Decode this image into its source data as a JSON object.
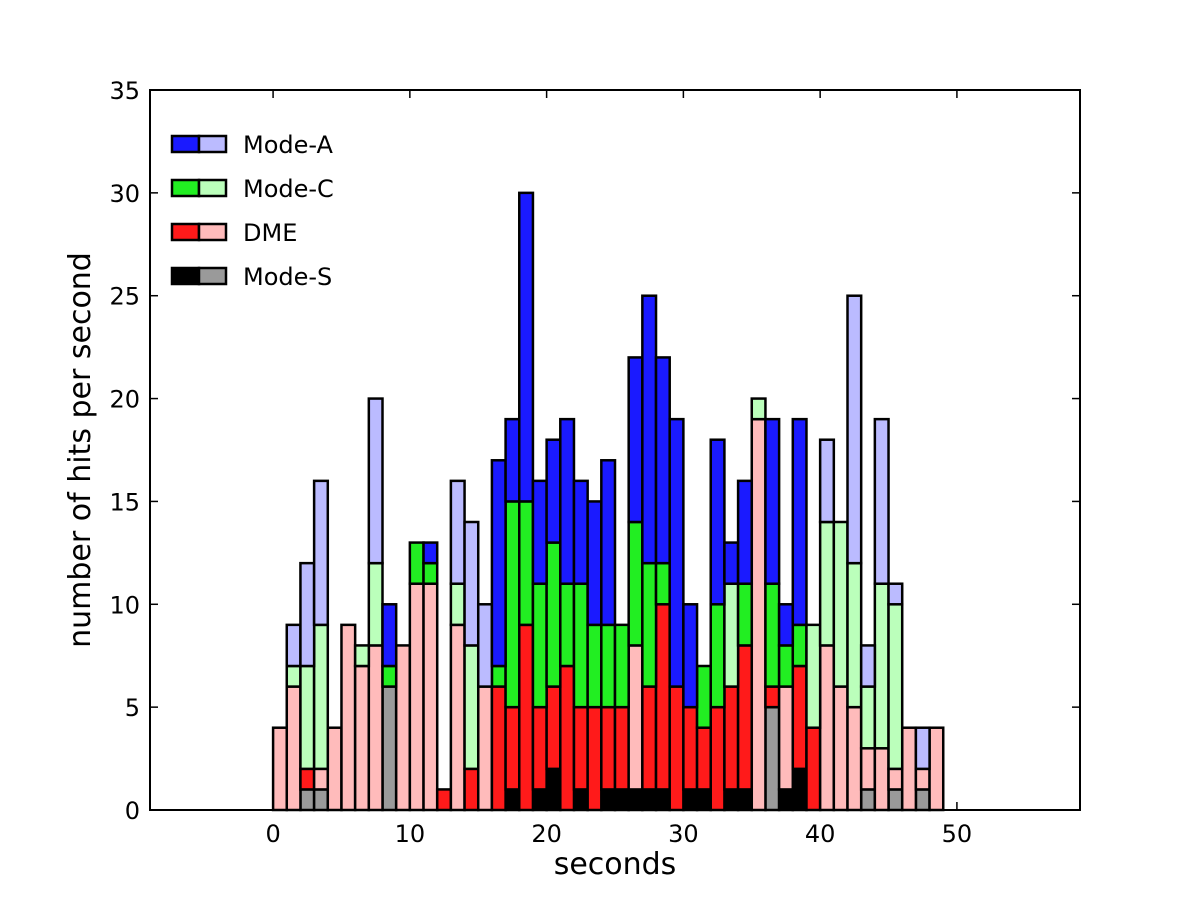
{
  "chart_data": {
    "type": "bar",
    "stacked": true,
    "xlabel": "seconds",
    "ylabel": "number of hits per second",
    "xlim": [
      -9,
      59
    ],
    "ylim": [
      0,
      35
    ],
    "xticks": [
      0,
      10,
      20,
      30,
      40,
      50
    ],
    "yticks": [
      0,
      5,
      10,
      15,
      20,
      25,
      30,
      35
    ],
    "x": [
      0,
      1,
      2,
      3,
      4,
      5,
      6,
      7,
      8,
      9,
      10,
      11,
      12,
      13,
      14,
      15,
      16,
      17,
      18,
      19,
      20,
      21,
      22,
      23,
      24,
      25,
      26,
      27,
      28,
      29,
      30,
      31,
      32,
      33,
      34,
      35,
      36,
      37,
      38,
      39,
      40,
      41,
      42,
      43,
      44,
      45,
      46,
      47,
      48,
      49
    ],
    "legend_position": "upper-left",
    "series": [
      {
        "name": "Mode-S",
        "colors": [
          "#000000",
          "#9a9a9a"
        ],
        "values": [
          0,
          0,
          1,
          1,
          0,
          0,
          0,
          0,
          6,
          0,
          0,
          0,
          0,
          0,
          0,
          0,
          0,
          1,
          0,
          1,
          2,
          0,
          1,
          0,
          1,
          1,
          1,
          1,
          1,
          0,
          1,
          1,
          0,
          1,
          1,
          0,
          5,
          1,
          2,
          0,
          0,
          0,
          0,
          1,
          0,
          1,
          0,
          1,
          0,
          0
        ],
        "shade": [
          0,
          0,
          1,
          1,
          0,
          0,
          0,
          0,
          1,
          0,
          0,
          0,
          0,
          0,
          0,
          0,
          0,
          0,
          0,
          0,
          0,
          0,
          0,
          0,
          0,
          0,
          0,
          0,
          0,
          0,
          0,
          0,
          0,
          0,
          0,
          0,
          1,
          0,
          0,
          0,
          0,
          0,
          0,
          1,
          0,
          1,
          0,
          1,
          0,
          0
        ]
      },
      {
        "name": "DME",
        "colors": [
          "#ff1a1a",
          "#ffbbbb"
        ],
        "values": [
          4,
          6,
          1,
          1,
          4,
          9,
          7,
          8,
          0,
          8,
          11,
          11,
          1,
          9,
          2,
          6,
          6,
          4,
          9,
          4,
          4,
          7,
          4,
          5,
          4,
          4,
          7,
          5,
          9,
          6,
          4,
          3,
          5,
          5,
          7,
          19,
          1,
          5,
          5,
          4,
          8,
          6,
          5,
          2,
          3,
          1,
          4,
          1,
          4,
          0
        ],
        "shade": [
          1,
          1,
          0,
          1,
          1,
          1,
          1,
          1,
          0,
          1,
          1,
          1,
          0,
          1,
          0,
          1,
          0,
          0,
          0,
          0,
          0,
          0,
          0,
          0,
          0,
          0,
          1,
          0,
          0,
          0,
          0,
          0,
          0,
          0,
          0,
          1,
          0,
          1,
          0,
          0,
          1,
          1,
          1,
          1,
          1,
          1,
          1,
          1,
          1,
          0
        ]
      },
      {
        "name": "Mode-C",
        "colors": [
          "#22ee22",
          "#bbffbb"
        ],
        "values": [
          0,
          1,
          5,
          7,
          0,
          0,
          1,
          4,
          1,
          0,
          2,
          1,
          0,
          2,
          6,
          0,
          1,
          10,
          6,
          6,
          7,
          4,
          6,
          4,
          4,
          4,
          6,
          6,
          2,
          0,
          0,
          3,
          5,
          5,
          3,
          1,
          5,
          2,
          2,
          5,
          6,
          8,
          7,
          3,
          8,
          8,
          0,
          0,
          0,
          0
        ],
        "shade": [
          0,
          1,
          1,
          1,
          0,
          0,
          1,
          1,
          0,
          0,
          0,
          0,
          0,
          1,
          1,
          1,
          0,
          0,
          0,
          0,
          0,
          0,
          0,
          0,
          0,
          0,
          0,
          0,
          0,
          0,
          0,
          0,
          0,
          1,
          0,
          1,
          0,
          0,
          0,
          1,
          1,
          1,
          1,
          1,
          1,
          1,
          0,
          0,
          0,
          0
        ]
      },
      {
        "name": "Mode-A",
        "colors": [
          "#1a1aff",
          "#bbbbff"
        ],
        "values": [
          0,
          2,
          5,
          7,
          0,
          0,
          0,
          8,
          3,
          0,
          0,
          1,
          0,
          5,
          6,
          4,
          10,
          4,
          15,
          5,
          5,
          8,
          5,
          6,
          8,
          0,
          8,
          13,
          10,
          13,
          5,
          0,
          8,
          2,
          5,
          0,
          8,
          2,
          10,
          0,
          4,
          0,
          13,
          2,
          8,
          1,
          0,
          2,
          0,
          0
        ],
        "shade": [
          0,
          1,
          1,
          1,
          0,
          0,
          0,
          1,
          0,
          0,
          0,
          0,
          0,
          1,
          1,
          1,
          0,
          0,
          0,
          0,
          0,
          0,
          0,
          0,
          0,
          0,
          0,
          0,
          0,
          0,
          0,
          0,
          0,
          0,
          0,
          0,
          0,
          0,
          0,
          0,
          1,
          1,
          1,
          1,
          1,
          1,
          1,
          1,
          1,
          0
        ]
      }
    ],
    "legend": [
      "Mode-A",
      "Mode-C",
      "DME",
      "Mode-S"
    ]
  }
}
